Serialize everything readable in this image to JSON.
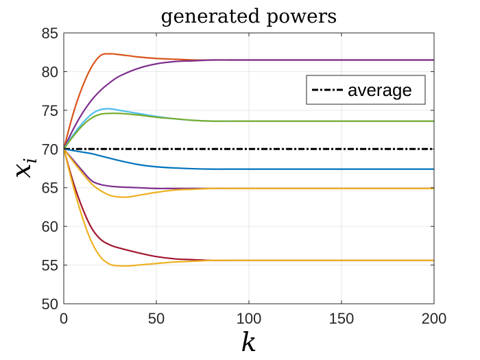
{
  "chart_data": {
    "type": "line",
    "title": "generated powers",
    "xlabel": "k",
    "ylabel": {
      "base": "x",
      "subscript": "i"
    },
    "xlim": [
      0,
      200
    ],
    "ylim": [
      50,
      85
    ],
    "xticks": [
      0,
      50,
      100,
      150,
      200
    ],
    "yticks": [
      50,
      55,
      60,
      65,
      70,
      75,
      80,
      85
    ],
    "grid": true,
    "legend": {
      "location": "top-right",
      "entries": [
        "average"
      ]
    },
    "series": [
      {
        "name": "agent-orange-high",
        "color": "#D95319",
        "x": [
          0,
          5,
          10,
          15,
          20,
          25,
          30,
          40,
          50,
          60,
          70,
          80,
          90,
          100,
          200
        ],
        "values": [
          70,
          74.5,
          78,
          80.6,
          82.1,
          82.3,
          82.2,
          81.9,
          81.7,
          81.6,
          81.5,
          81.5,
          81.5,
          81.5,
          81.5
        ]
      },
      {
        "name": "agent-purple-high",
        "color": "#7E2F8E",
        "x": [
          0,
          5,
          10,
          15,
          20,
          25,
          30,
          40,
          50,
          60,
          70,
          80,
          90,
          100,
          200
        ],
        "values": [
          70,
          72.5,
          74.6,
          76.3,
          77.6,
          78.6,
          79.4,
          80.4,
          81.0,
          81.3,
          81.4,
          81.5,
          81.5,
          81.5,
          81.5
        ]
      },
      {
        "name": "agent-cyan",
        "color": "#4DBEEE",
        "x": [
          0,
          5,
          10,
          15,
          20,
          25,
          30,
          40,
          50,
          60,
          70,
          80,
          90,
          100,
          200
        ],
        "values": [
          70,
          71.8,
          73.3,
          74.5,
          75.1,
          75.2,
          75.0,
          74.6,
          74.2,
          73.9,
          73.7,
          73.6,
          73.6,
          73.6,
          73.6
        ]
      },
      {
        "name": "agent-green",
        "color": "#77AC30",
        "x": [
          0,
          5,
          10,
          15,
          20,
          25,
          30,
          40,
          50,
          60,
          70,
          80,
          90,
          100,
          200
        ],
        "values": [
          70,
          71.6,
          73.0,
          74.0,
          74.5,
          74.6,
          74.6,
          74.4,
          74.1,
          73.9,
          73.7,
          73.6,
          73.6,
          73.6,
          73.6
        ]
      },
      {
        "name": "average",
        "color": "#000000",
        "dash": true,
        "x": [
          0,
          200
        ],
        "values": [
          70,
          70
        ]
      },
      {
        "name": "agent-blue",
        "color": "#0072BD",
        "x": [
          0,
          5,
          10,
          15,
          20,
          25,
          30,
          40,
          50,
          60,
          70,
          80,
          90,
          100,
          200
        ],
        "values": [
          70,
          69.8,
          69.6,
          69.4,
          69.1,
          68.8,
          68.5,
          68.0,
          67.7,
          67.55,
          67.45,
          67.4,
          67.4,
          67.4,
          67.4
        ]
      },
      {
        "name": "agent-purple-low",
        "color": "#7E2F8E",
        "x": [
          0,
          5,
          10,
          15,
          20,
          25,
          30,
          40,
          50,
          60,
          70,
          80,
          90,
          100,
          200
        ],
        "values": [
          70,
          68.6,
          67.2,
          65.9,
          65.4,
          65.2,
          65.1,
          65.0,
          64.9,
          64.9,
          64.9,
          64.9,
          64.9,
          64.9,
          64.9
        ]
      },
      {
        "name": "agent-yellow-mid",
        "color": "#EDB120",
        "x": [
          0,
          5,
          10,
          15,
          20,
          25,
          30,
          35,
          40,
          50,
          60,
          70,
          80,
          90,
          100,
          200
        ],
        "values": [
          70,
          68.4,
          66.9,
          65.5,
          64.6,
          64.0,
          63.8,
          63.8,
          64.0,
          64.4,
          64.7,
          64.8,
          64.9,
          64.9,
          64.9,
          64.9
        ]
      },
      {
        "name": "agent-red",
        "color": "#A2142F",
        "x": [
          0,
          5,
          10,
          15,
          20,
          25,
          30,
          40,
          50,
          60,
          70,
          80,
          90,
          100,
          200
        ],
        "values": [
          70,
          65.8,
          62.4,
          59.8,
          58.3,
          57.6,
          57.2,
          56.6,
          56.1,
          55.8,
          55.7,
          55.6,
          55.6,
          55.6,
          55.6
        ]
      },
      {
        "name": "agent-yellow-low",
        "color": "#EDB120",
        "x": [
          0,
          5,
          10,
          15,
          20,
          25,
          30,
          35,
          40,
          50,
          60,
          70,
          80,
          90,
          100,
          200
        ],
        "values": [
          70,
          65.3,
          61.2,
          58.0,
          56.0,
          55.1,
          54.9,
          54.9,
          55.0,
          55.2,
          55.4,
          55.5,
          55.6,
          55.6,
          55.6,
          55.6
        ]
      }
    ]
  },
  "colors": {
    "axis": "#262626",
    "grid": "#E6E6E6",
    "background": "#FFFFFF"
  }
}
